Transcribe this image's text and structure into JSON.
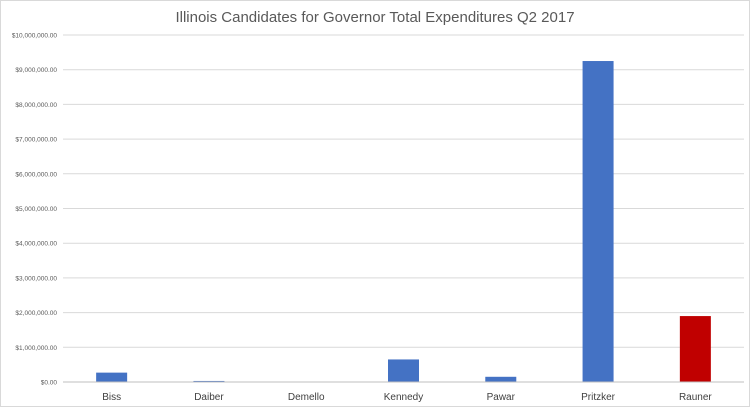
{
  "chart_data": {
    "type": "bar",
    "title": "Illinois Candidates for Governor Total Expenditures Q2 2017",
    "xlabel": "",
    "ylabel": "",
    "categories": [
      "Biss",
      "Daiber",
      "Demello",
      "Kennedy",
      "Pawar",
      "Pritzker",
      "Rauner"
    ],
    "values": [
      270000,
      30000,
      0,
      650000,
      150000,
      9250000,
      1900000
    ],
    "bar_colors": [
      "#4472c4",
      "#4472c4",
      "#4472c4",
      "#4472c4",
      "#4472c4",
      "#4472c4",
      "#c00000"
    ],
    "ylim": [
      0,
      10000000
    ],
    "yticks": [
      0,
      1000000,
      2000000,
      3000000,
      4000000,
      5000000,
      6000000,
      7000000,
      8000000,
      9000000,
      10000000
    ],
    "ytick_labels": [
      "$0.00",
      "$1,000,000.00",
      "$2,000,000.00",
      "$3,000,000.00",
      "$4,000,000.00",
      "$5,000,000.00",
      "$6,000,000.00",
      "$7,000,000.00",
      "$8,000,000.00",
      "$9,000,000.00",
      "$10,000,000.00"
    ],
    "grid": true,
    "legend": "none"
  }
}
